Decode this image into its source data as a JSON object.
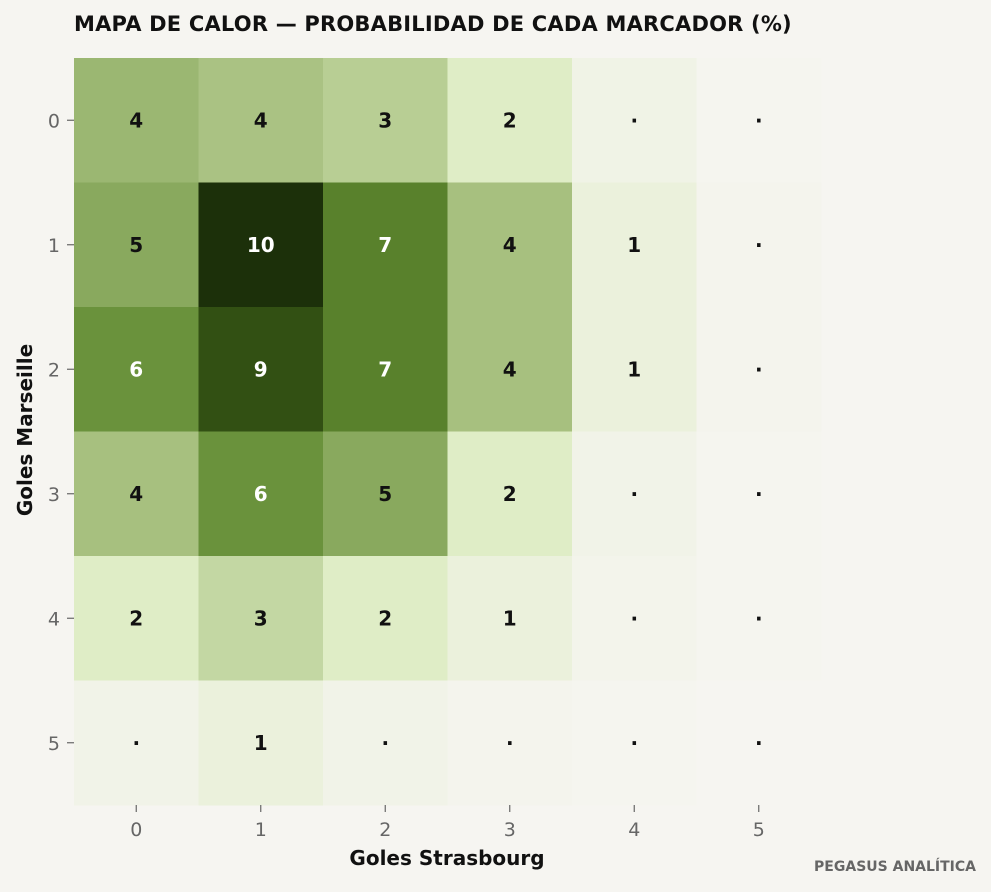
{
  "chart_data": {
    "type": "heatmap",
    "title": "MAPA DE CALOR — PROBABILIDAD DE CADA MARCADOR (%)",
    "xlabel": "Goles Strasbourg",
    "ylabel": "Goles Marseille",
    "x_categories": [
      "0",
      "1",
      "2",
      "3",
      "4",
      "5"
    ],
    "y_categories": [
      "0",
      "1",
      "2",
      "3",
      "4",
      "5"
    ],
    "values": [
      [
        4.4,
        3.9,
        3.4,
        2.0,
        0.5,
        0.1
      ],
      [
        5.0,
        10.0,
        7.0,
        4.0,
        1.0,
        0.2
      ],
      [
        6.0,
        9.0,
        7.0,
        4.0,
        1.0,
        0.2
      ],
      [
        4.0,
        6.0,
        5.0,
        2.0,
        0.4,
        0.1
      ],
      [
        2.0,
        3.0,
        2.0,
        1.0,
        0.3,
        0.1
      ],
      [
        0.4,
        1.0,
        0.4,
        0.2,
        0.1,
        0.0
      ]
    ],
    "cell_labels": [
      [
        "4",
        "4",
        "3",
        "2",
        "·",
        "·"
      ],
      [
        "5",
        "10",
        "7",
        "4",
        "1",
        "·"
      ],
      [
        "6",
        "9",
        "7",
        "4",
        "1",
        "·"
      ],
      [
        "4",
        "6",
        "5",
        "2",
        "·",
        "·"
      ],
      [
        "2",
        "3",
        "2",
        "1",
        "·",
        "·"
      ],
      [
        "·",
        "1",
        "·",
        "·",
        "·",
        "·"
      ]
    ],
    "colorscale": [
      "#f6f5f1",
      "#dfedc6",
      "#a7c07f",
      "#6a923c",
      "#486f1c",
      "#1c300a"
    ],
    "grid": false,
    "legend": "none"
  },
  "credit": "PEGASUS ANALÍTICA",
  "colors": {
    "background": "#f6f5f1",
    "title_text": "#111111",
    "axis_text": "#666666",
    "label_dark": "#111111",
    "label_light": "#ffffff"
  }
}
